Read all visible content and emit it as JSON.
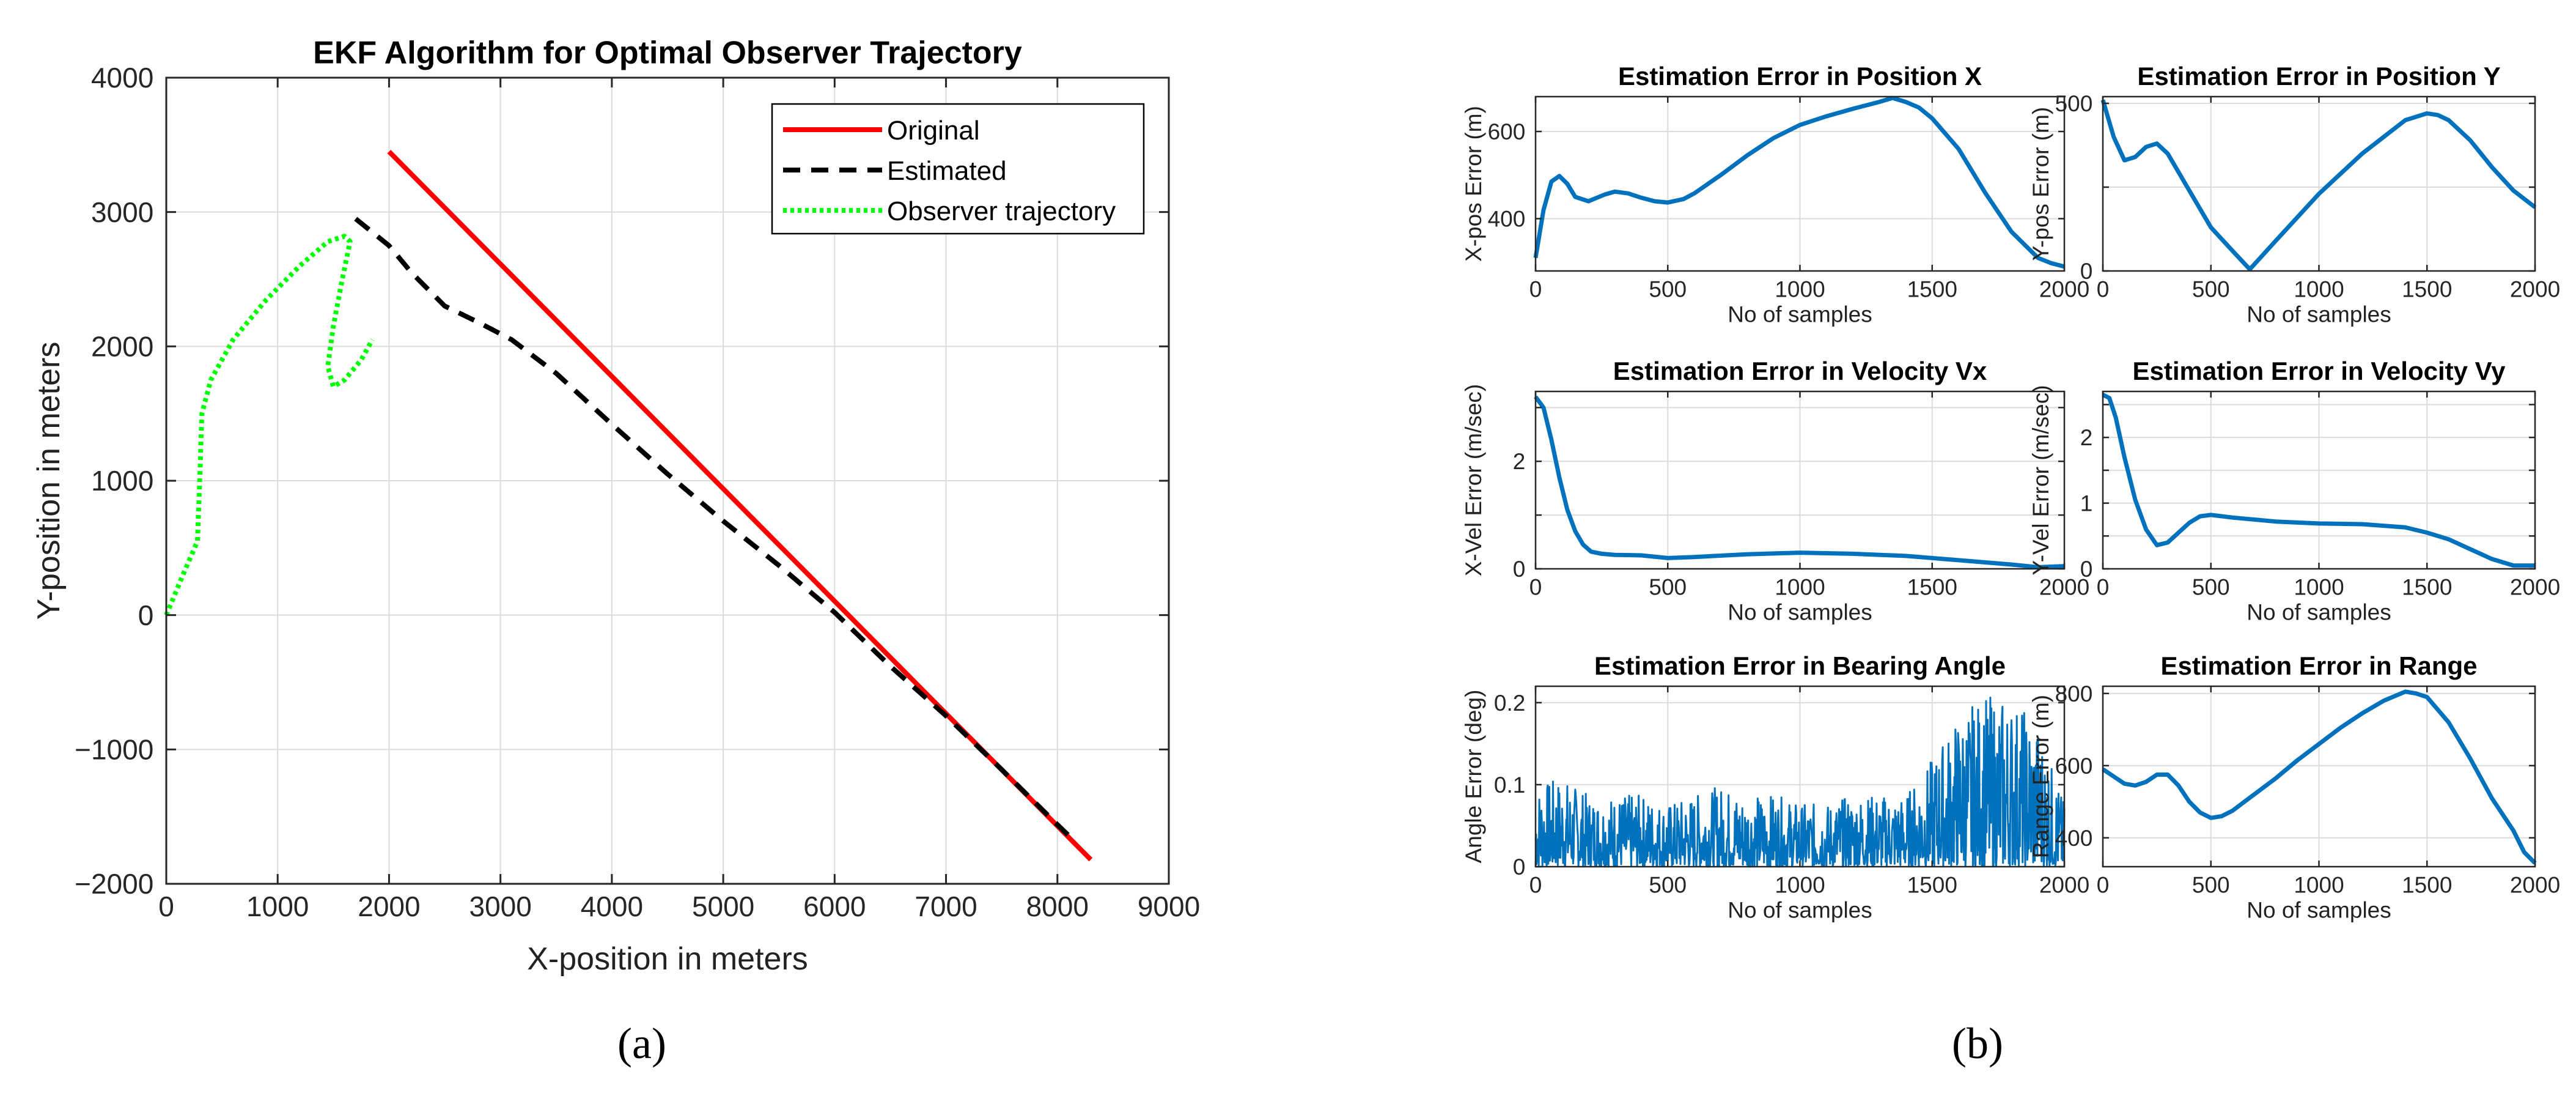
{
  "colors": {
    "original": "#ff0000",
    "estimated": "#000000",
    "observer": "#00ff00",
    "error_line": "#0072bd",
    "grid": "#dcdcdc",
    "axis": "#262626"
  },
  "panel_labels": {
    "a": "(a)",
    "b": "(b)"
  },
  "chart_data": [
    {
      "id": "ekf-trajectory",
      "type": "line",
      "title": "EKF Algorithm for Optimal Observer Trajectory",
      "xlabel": "X-position in meters",
      "ylabel": "Y-position in meters",
      "xlim": [
        0,
        9000
      ],
      "ylim": [
        -2000,
        4000
      ],
      "xticks": [
        0,
        1000,
        2000,
        3000,
        4000,
        5000,
        6000,
        7000,
        8000,
        9000
      ],
      "yticks": [
        -2000,
        -1000,
        0,
        1000,
        2000,
        3000,
        4000
      ],
      "xtick_labels": [
        "0",
        "1000",
        "2000",
        "3000",
        "4000",
        "5000",
        "6000",
        "7000",
        "8000",
        "9000"
      ],
      "ytick_labels": [
        "−2000",
        "−1000",
        "0",
        "1000",
        "2000",
        "3000",
        "4000"
      ],
      "grid": true,
      "legend_position": "top-right",
      "series": [
        {
          "name": "Original",
          "style": "solid",
          "x": [
            2000,
            8300
          ],
          "y": [
            3450,
            -1820
          ]
        },
        {
          "name": "Estimated",
          "style": "dashed",
          "x": [
            1700,
            2000,
            2200,
            2500,
            2800,
            3100,
            3500,
            4000,
            4500,
            5000,
            5500,
            6000,
            6500,
            7000,
            7500,
            8000,
            8150
          ],
          "y": [
            2950,
            2750,
            2550,
            2300,
            2180,
            2050,
            1800,
            1420,
            1050,
            700,
            370,
            20,
            -380,
            -750,
            -1150,
            -1560,
            -1680
          ]
        },
        {
          "name": "Observer trajectory",
          "style": "dotted",
          "x": [
            0,
            150,
            280,
            300,
            320,
            400,
            600,
            900,
            1200,
            1450,
            1600,
            1650,
            1580,
            1500,
            1450,
            1500,
            1600,
            1750,
            1850
          ],
          "y": [
            0,
            300,
            550,
            1000,
            1500,
            1750,
            2050,
            2350,
            2600,
            2780,
            2820,
            2780,
            2500,
            2150,
            1850,
            1700,
            1750,
            1900,
            2050
          ]
        }
      ]
    },
    {
      "id": "pos-x",
      "type": "line",
      "title": "Estimation Error in Position X",
      "xlabel": "No of samples",
      "ylabel": "X-pos Error (m)",
      "xlim": [
        0,
        2000
      ],
      "ylim": [
        280,
        680
      ],
      "xticks": [
        0,
        500,
        1000,
        1500,
        2000
      ],
      "yticks": [
        400,
        600
      ],
      "xtick_labels": [
        "0",
        "500",
        "1000",
        "1500",
        "2000"
      ],
      "ytick_labels": [
        "400",
        "600"
      ],
      "grid": true,
      "series": [
        {
          "name": "error",
          "x": [
            0,
            30,
            60,
            90,
            120,
            150,
            200,
            260,
            300,
            350,
            400,
            450,
            500,
            560,
            600,
            700,
            800,
            900,
            1000,
            1100,
            1200,
            1300,
            1350,
            1400,
            1450,
            1500,
            1600,
            1700,
            1800,
            1900,
            1950,
            2000
          ],
          "y": [
            310,
            420,
            485,
            498,
            480,
            450,
            440,
            455,
            462,
            458,
            448,
            440,
            437,
            445,
            458,
            500,
            545,
            585,
            615,
            635,
            652,
            668,
            677,
            668,
            655,
            630,
            560,
            460,
            370,
            310,
            298,
            290
          ]
        }
      ]
    },
    {
      "id": "pos-y",
      "type": "line",
      "title": "Estimation Error in Position Y",
      "xlabel": "No of samples",
      "ylabel": "Y-pos Error (m)",
      "xlim": [
        0,
        2000
      ],
      "ylim": [
        0,
        520
      ],
      "xticks": [
        0,
        500,
        1000,
        1500,
        2000
      ],
      "yticks": [
        0,
        250,
        500
      ],
      "xtick_labels": [
        "0",
        "500",
        "1000",
        "1500",
        "2000"
      ],
      "ytick_labels": [
        "0",
        "",
        "500"
      ],
      "grid": true,
      "series": [
        {
          "name": "error",
          "x": [
            0,
            50,
            100,
            150,
            200,
            250,
            300,
            400,
            500,
            600,
            680,
            800,
            1000,
            1200,
            1400,
            1500,
            1550,
            1600,
            1700,
            1800,
            1900,
            2000
          ],
          "y": [
            510,
            400,
            330,
            340,
            370,
            380,
            350,
            240,
            130,
            60,
            5,
            90,
            230,
            350,
            450,
            470,
            465,
            450,
            390,
            310,
            240,
            190
          ]
        }
      ]
    },
    {
      "id": "vel-x",
      "type": "line",
      "title": "Estimation Error in Velocity Vx",
      "xlabel": "No of samples",
      "ylabel": "X-Vel Error (m/sec)",
      "xlim": [
        0,
        2000
      ],
      "ylim": [
        0,
        3.3
      ],
      "xticks": [
        0,
        500,
        1000,
        1500,
        2000
      ],
      "yticks": [
        0,
        1,
        2,
        3
      ],
      "xtick_labels": [
        "0",
        "500",
        "1000",
        "1500",
        "2000"
      ],
      "ytick_labels": [
        "0",
        "",
        "2",
        ""
      ],
      "grid": true,
      "series": [
        {
          "name": "error",
          "x": [
            0,
            30,
            60,
            90,
            120,
            150,
            180,
            210,
            250,
            300,
            400,
            500,
            600,
            800,
            1000,
            1200,
            1400,
            1600,
            1800,
            1900,
            2000
          ],
          "y": [
            3.2,
            3.0,
            2.4,
            1.7,
            1.1,
            0.7,
            0.45,
            0.32,
            0.28,
            0.26,
            0.25,
            0.2,
            0.22,
            0.27,
            0.3,
            0.28,
            0.24,
            0.16,
            0.08,
            0.03,
            0.05
          ]
        }
      ]
    },
    {
      "id": "vel-y",
      "type": "line",
      "title": "Estimation Error in Velocity Vy",
      "xlabel": "No of samples",
      "ylabel": "Y-Vel Error (m/sec)",
      "xlim": [
        0,
        2000
      ],
      "ylim": [
        0,
        2.7
      ],
      "xticks": [
        0,
        500,
        1000,
        1500,
        2000
      ],
      "yticks": [
        0,
        0.5,
        1,
        1.5,
        2,
        2.5
      ],
      "xtick_labels": [
        "0",
        "500",
        "1000",
        "1500",
        "2000"
      ],
      "ytick_labels": [
        "0",
        "",
        "1",
        "",
        "2",
        ""
      ],
      "grid": true,
      "series": [
        {
          "name": "error",
          "x": [
            0,
            30,
            60,
            100,
            150,
            200,
            250,
            300,
            350,
            400,
            450,
            500,
            600,
            800,
            1000,
            1200,
            1400,
            1500,
            1600,
            1700,
            1800,
            1900,
            2000
          ],
          "y": [
            2.65,
            2.6,
            2.3,
            1.7,
            1.05,
            0.6,
            0.36,
            0.4,
            0.55,
            0.7,
            0.8,
            0.82,
            0.78,
            0.72,
            0.69,
            0.68,
            0.63,
            0.55,
            0.45,
            0.3,
            0.15,
            0.05,
            0.05
          ]
        }
      ]
    },
    {
      "id": "bearing",
      "type": "line",
      "noisy": true,
      "title": "Estimation Error in Bearing Angle",
      "xlabel": "No of samples",
      "ylabel": "Angle Error (deg)",
      "xlim": [
        0,
        2000
      ],
      "ylim": [
        0,
        0.22
      ],
      "xticks": [
        0,
        500,
        1000,
        1500,
        2000
      ],
      "yticks": [
        0,
        0.1,
        0.2
      ],
      "xtick_labels": [
        "0",
        "500",
        "1000",
        "1500",
        "2000"
      ],
      "ytick_labels": [
        "0",
        "0.1",
        "0.2"
      ],
      "grid": true,
      "series": [
        {
          "name": "error_envelope",
          "x": [
            0,
            100,
            200,
            300,
            400,
            500,
            600,
            700,
            800,
            900,
            1000,
            1100,
            1200,
            1300,
            1400,
            1500,
            1600,
            1700,
            1800,
            1900,
            2000
          ],
          "y": [
            0.09,
            0.1,
            0.08,
            0.08,
            0.08,
            0.07,
            0.08,
            0.09,
            0.08,
            0.08,
            0.07,
            0.07,
            0.08,
            0.08,
            0.08,
            0.12,
            0.17,
            0.19,
            0.19,
            0.16,
            0.07
          ]
        }
      ]
    },
    {
      "id": "range",
      "type": "line",
      "title": "Estimation Error in Range",
      "xlabel": "No of samples",
      "ylabel": "Range Error (m)",
      "xlim": [
        0,
        2000
      ],
      "ylim": [
        320,
        820
      ],
      "xticks": [
        0,
        500,
        1000,
        1500,
        2000
      ],
      "yticks": [
        400,
        600,
        800
      ],
      "xtick_labels": [
        "0",
        "500",
        "1000",
        "1500",
        "2000"
      ],
      "ytick_labels": [
        "400",
        "600",
        "800"
      ],
      "grid": true,
      "series": [
        {
          "name": "error",
          "x": [
            0,
            50,
            100,
            150,
            200,
            250,
            300,
            350,
            400,
            450,
            500,
            550,
            600,
            700,
            800,
            900,
            1000,
            1100,
            1200,
            1300,
            1400,
            1450,
            1500,
            1600,
            1700,
            1800,
            1900,
            1950,
            2000
          ],
          "y": [
            590,
            570,
            550,
            545,
            555,
            575,
            575,
            545,
            500,
            470,
            455,
            460,
            475,
            520,
            565,
            615,
            660,
            705,
            745,
            780,
            805,
            800,
            790,
            720,
            620,
            510,
            420,
            360,
            330
          ]
        }
      ]
    }
  ]
}
